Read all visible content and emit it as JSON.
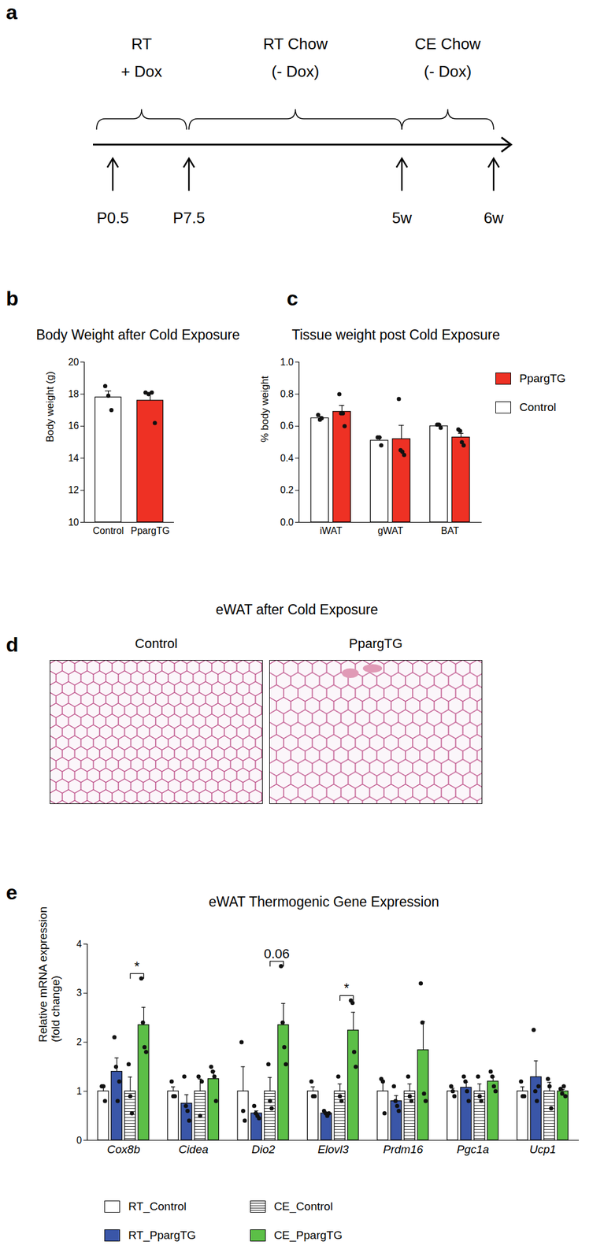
{
  "timeline": {
    "panel": "a",
    "phases": [
      [
        "RT",
        "+ Dox"
      ],
      [
        "RT Chow",
        "(- Dox)"
      ],
      [
        "CE Chow",
        "(- Dox)"
      ]
    ],
    "timepoints": [
      "P0.5",
      "P7.5",
      "5w",
      "6w"
    ]
  },
  "histology": {
    "panel": "d",
    "title": "eWAT after Cold Exposure",
    "images": [
      "Control",
      "PpargTG"
    ]
  },
  "chart_data": [
    {
      "panel": "b",
      "type": "bar",
      "title": "Body Weight after Cold Exposure",
      "categories": [
        "Control",
        "PpargTG"
      ],
      "values": [
        17.8,
        17.6
      ],
      "errors": [
        0.4,
        0.5
      ],
      "points": [
        [
          18.5,
          17.9,
          17.0
        ],
        [
          18.1,
          18.0,
          18.1,
          16.2
        ]
      ],
      "colors": [
        "#ffffff",
        "#ee3124"
      ],
      "ylabel": "Body weight (g)",
      "ylim": [
        10,
        20
      ],
      "yticks": [
        10,
        12,
        14,
        16,
        18,
        20
      ]
    },
    {
      "panel": "c",
      "type": "bar",
      "title": "Tissue weight post Cold Exposure",
      "categories": [
        "iWAT",
        "gWAT",
        "BAT"
      ],
      "series": [
        {
          "name": "Control",
          "color": "#ffffff",
          "values": [
            0.65,
            0.51,
            0.6
          ],
          "errors": [
            0.01,
            0.02,
            0.01
          ],
          "points": [
            [
              0.67,
              0.64,
              0.65
            ],
            [
              0.53,
              0.53,
              0.48
            ],
            [
              0.61,
              0.61,
              0.59
            ]
          ]
        },
        {
          "name": "PpargTG",
          "color": "#ee3124",
          "values": [
            0.69,
            0.52,
            0.53
          ],
          "errors": [
            0.04,
            0.085,
            0.025
          ],
          "points": [
            [
              0.8,
              0.68,
              0.68,
              0.6
            ],
            [
              0.77,
              0.45,
              0.44,
              0.42
            ],
            [
              0.58,
              0.57,
              0.5,
              0.48
            ]
          ]
        }
      ],
      "ylabel": "% body weight",
      "ylim": [
        0,
        1
      ],
      "yticks": [
        {
          "value": 0,
          "label": "0.0"
        },
        0.2,
        0.4,
        0.6,
        0.8,
        {
          "value": 1,
          "label": "1.0"
        }
      ],
      "legend": "right"
    },
    {
      "panel": "e",
      "type": "bar",
      "title": "eWAT Thermogenic Gene Expression",
      "categories": [
        "Cox8b",
        "Cidea",
        "Dio2",
        "Elovl3",
        "Prdm16",
        "Pgc1a",
        "Ucp1"
      ],
      "series": [
        {
          "name": "RT_Control",
          "color": "#ffffff",
          "values": [
            1.0,
            1.0,
            1.0,
            1.0,
            1.0,
            1.0,
            1.0
          ],
          "errors": [
            0.09,
            0.09,
            0.5,
            0.09,
            0.22,
            0.06,
            0.09
          ],
          "points": [
            [
              1.1,
              1.1,
              0.8
            ],
            [
              1.2,
              0.9,
              0.9
            ],
            [
              2.0,
              0.6,
              0.4
            ],
            [
              1.2,
              0.9,
              0.9
            ],
            [
              1.25,
              1.2,
              0.55
            ],
            [
              1.1,
              1.0,
              0.9
            ],
            [
              1.2,
              0.9,
              0.9
            ]
          ]
        },
        {
          "name": "RT_PpargTG",
          "color": "#3a56a8",
          "values": [
            1.4,
            0.75,
            0.55,
            0.55,
            0.8,
            1.075,
            1.29
          ],
          "errors": [
            0.28,
            0.18,
            0.05,
            0.02,
            0.11,
            0.11,
            0.33
          ],
          "points": [
            [
              2.1,
              1.5,
              0.8,
              1.2
            ],
            [
              1.3,
              0.7,
              0.6,
              0.4
            ],
            [
              0.7,
              0.55,
              0.5,
              0.45
            ],
            [
              0.6,
              0.55,
              0.5,
              0.55
            ],
            [
              1.1,
              0.8,
              0.7,
              0.6
            ],
            [
              1.3,
              1.2,
              1.0,
              0.8
            ],
            [
              2.25,
              1.0,
              0.8,
              1.1
            ]
          ]
        },
        {
          "name": "CE_Control",
          "color": "#ffffff",
          "line_style": "striped",
          "values": [
            1.0,
            1.0,
            1.0,
            1.0,
            1.0,
            1.0,
            1.0
          ],
          "errors": [
            0.29,
            0.25,
            0.28,
            0.15,
            0.15,
            0.15,
            0.18
          ],
          "points": [
            [
              1.55,
              0.9,
              0.55
            ],
            [
              1.3,
              0.5,
              1.2
            ],
            [
              1.55,
              0.8,
              0.65
            ],
            [
              1.3,
              0.9,
              0.8
            ],
            [
              1.3,
              0.9,
              0.8
            ],
            [
              1.3,
              0.9,
              0.8
            ],
            [
              1.25,
              1.1,
              0.65
            ]
          ]
        },
        {
          "name": "CE_PpargTG",
          "color": "#5cbf47",
          "values": [
            2.35,
            1.25,
            2.35,
            2.24,
            1.84,
            1.2,
            1.0
          ],
          "errors": [
            0.36,
            0.16,
            0.44,
            0.37,
            0.58,
            0.09,
            0.04
          ],
          "points": [
            [
              3.3,
              2.4,
              1.9,
              1.8
            ],
            [
              1.5,
              1.4,
              1.3,
              0.8
            ],
            [
              3.55,
              2.4,
              1.9,
              1.55
            ],
            [
              2.85,
              2.8,
              1.8,
              1.5
            ],
            [
              3.2,
              2.4,
              0.95,
              0.8
            ],
            [
              1.4,
              1.3,
              1.1,
              1.0
            ],
            [
              1.05,
              0.95,
              1.1,
              0.9
            ]
          ]
        }
      ],
      "ylabel": "Relative mRNA expression\n(fold change)",
      "ylim": [
        0,
        4
      ],
      "yticks": [
        0,
        1,
        2,
        3,
        4
      ],
      "annotations": [
        {
          "category": "Cox8b",
          "pair": [
            "CE_Control",
            "CE_PpargTG"
          ],
          "label": "*"
        },
        {
          "category": "Dio2",
          "pair": [
            "CE_Control",
            "CE_PpargTG"
          ],
          "label": "0.06"
        },
        {
          "category": "Elovl3",
          "pair": [
            "CE_Control",
            "CE_PpargTG"
          ],
          "label": "*"
        }
      ],
      "legend": "bottom"
    }
  ]
}
